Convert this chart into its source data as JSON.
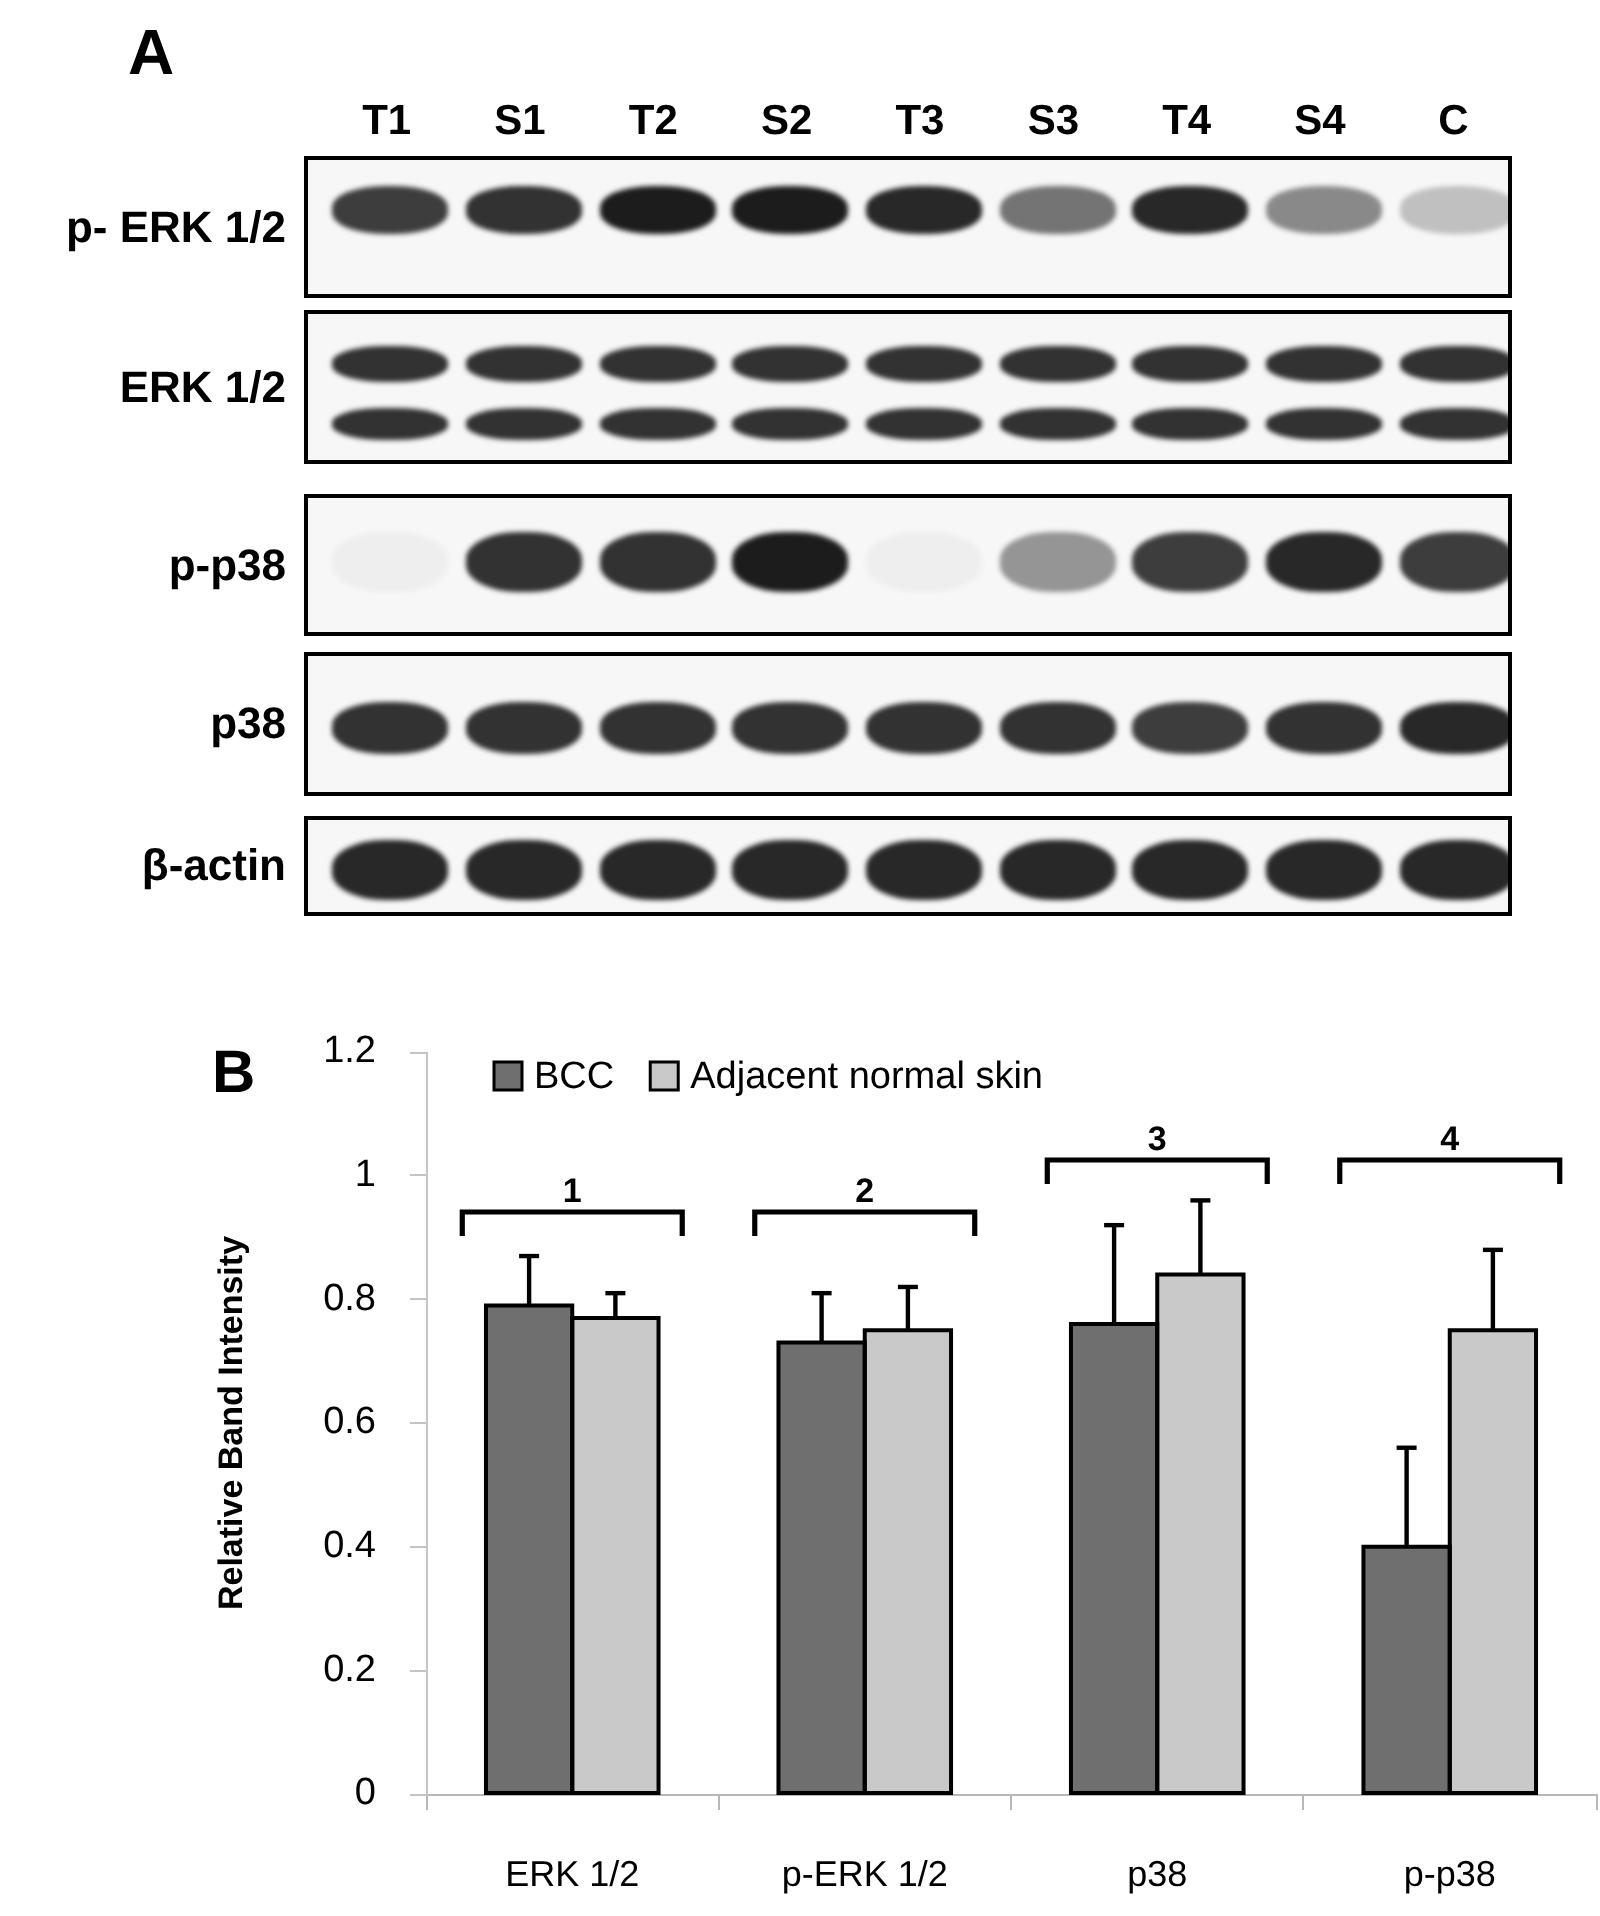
{
  "chart_data": [
    {
      "type": "other",
      "title": "A",
      "categories": [
        "T1",
        "S1",
        "T2",
        "S2",
        "T3",
        "S3",
        "T4",
        "S4",
        "C"
      ],
      "y_categories": [
        "p- ERK 1/2",
        "ERK 1/2",
        "p-p38",
        "p38",
        "β-actin"
      ]
    },
    {
      "type": "bar",
      "title": "B",
      "ylabel": "Relative Band Intensity",
      "categories": [
        "ERK 1/2",
        "p-ERK 1/2",
        "p38",
        "p-p38"
      ],
      "series": [
        {
          "name": "BCC",
          "color": "#6f6f6f",
          "values": [
            0.79,
            0.73,
            0.76,
            0.4
          ],
          "errors": [
            [
              0.79,
              0.87
            ],
            [
              0.73,
              0.81
            ],
            [
              0.76,
              0.92
            ],
            [
              0.4,
              0.56
            ]
          ]
        },
        {
          "name": "Adjacent normal skin",
          "color": "#c9c9c9",
          "values": [
            0.77,
            0.75,
            0.84,
            0.75
          ],
          "errors": [
            [
              0.77,
              0.81
            ],
            [
              0.75,
              0.82
            ],
            [
              0.84,
              0.96
            ],
            [
              0.75,
              0.88
            ]
          ]
        }
      ],
      "ylim": [
        0,
        1.2
      ],
      "yticks": [
        0,
        0.2,
        0.4,
        0.6,
        0.8,
        1,
        1.2
      ],
      "grid": false,
      "legend": "top left",
      "annotations": [
        "1",
        "2",
        "3",
        "4"
      ]
    }
  ]
}
